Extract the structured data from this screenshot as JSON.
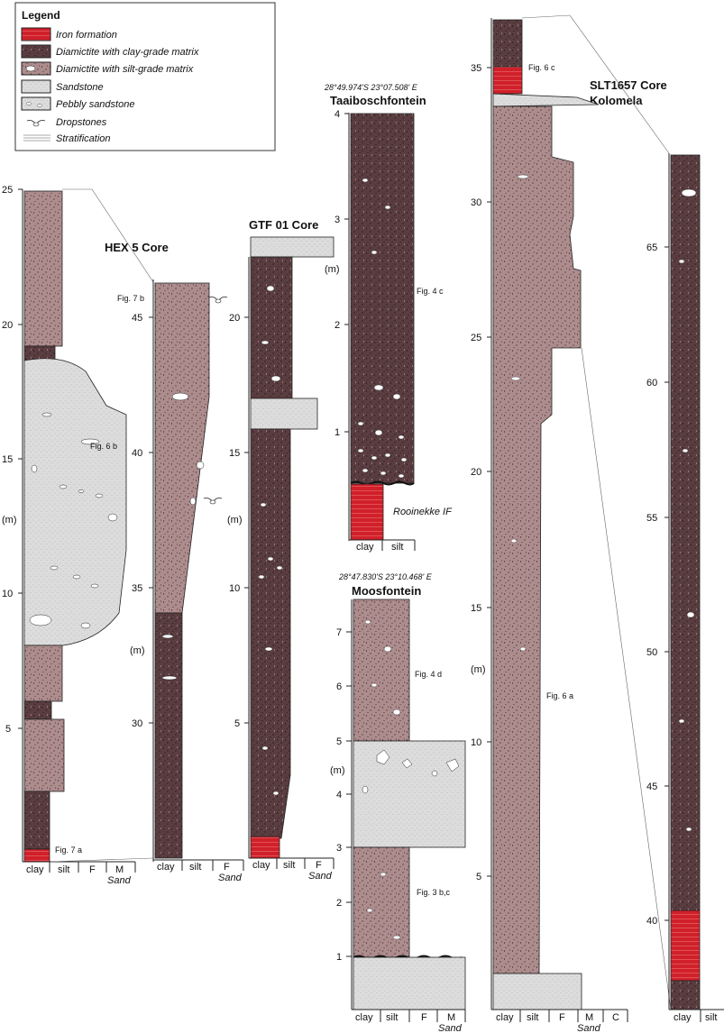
{
  "legend": {
    "title": "Legend",
    "items": [
      {
        "label": "Iron formation",
        "icon": "iron-formation-swatch"
      },
      {
        "label": "Diamictite with clay-grade matrix",
        "icon": "clay-diamictite-swatch"
      },
      {
        "label": "Diamictite with silt-grade matrix",
        "icon": "silt-diamictite-swatch"
      },
      {
        "label": "Sandstone",
        "icon": "sandstone-swatch"
      },
      {
        "label": "Pebbly sandstone",
        "icon": "pebbly-sandstone-swatch"
      },
      {
        "label": "Dropstones",
        "icon": "dropstone-icon"
      },
      {
        "label": "Stratification",
        "icon": "stratification-icon"
      }
    ]
  },
  "colors": {
    "iron": "#d0202a",
    "clay": "#5a3d40",
    "silt": "#ad8c8d",
    "sand": "#dcdcdc",
    "outline": "#222222"
  },
  "axis_unit": "(m)",
  "grain_labels": {
    "clay": "clay",
    "silt": "silt",
    "fine": "F",
    "medium": "M",
    "coarse": "C",
    "sand": "Sand"
  },
  "cores": {
    "hex5": {
      "title": "HEX 5 Core",
      "ticks": [
        "5",
        "10",
        "15",
        "20",
        "25"
      ],
      "ticks2": [
        "30",
        "35",
        "40",
        "45"
      ],
      "figs": [
        "Fig. 6 b",
        "Fig. 7 a",
        "Fig. 7 b"
      ]
    },
    "gtf01": {
      "title": "GTF 01 Core",
      "ticks": [
        "5",
        "10",
        "15",
        "20"
      ]
    },
    "taai": {
      "title": "Taaiboschfontein",
      "coords": "28°49.974'S  23°07.508' E",
      "ticks": [
        "1",
        "2",
        "3",
        "4"
      ],
      "figs": [
        "Fig. 4 c"
      ],
      "if_label": "Rooinekke IF"
    },
    "moos": {
      "title": "Moosfontein",
      "coords": "28°47.830'S  23°10.468' E",
      "ticks": [
        "1",
        "2",
        "3",
        "4",
        "5",
        "6",
        "7"
      ],
      "figs": [
        "Fig. 4 d",
        "Fig. 3 b,c"
      ]
    },
    "slt": {
      "title_line1": "SLT1657 Core",
      "title_line2": "Kolomela",
      "ticks": [
        "5",
        "10",
        "15",
        "20",
        "25",
        "30",
        "35"
      ],
      "ticks2": [
        "40",
        "45",
        "50",
        "55",
        "60",
        "65"
      ],
      "figs": [
        "Fig. 6 c",
        "Fig. 6 a"
      ]
    }
  }
}
